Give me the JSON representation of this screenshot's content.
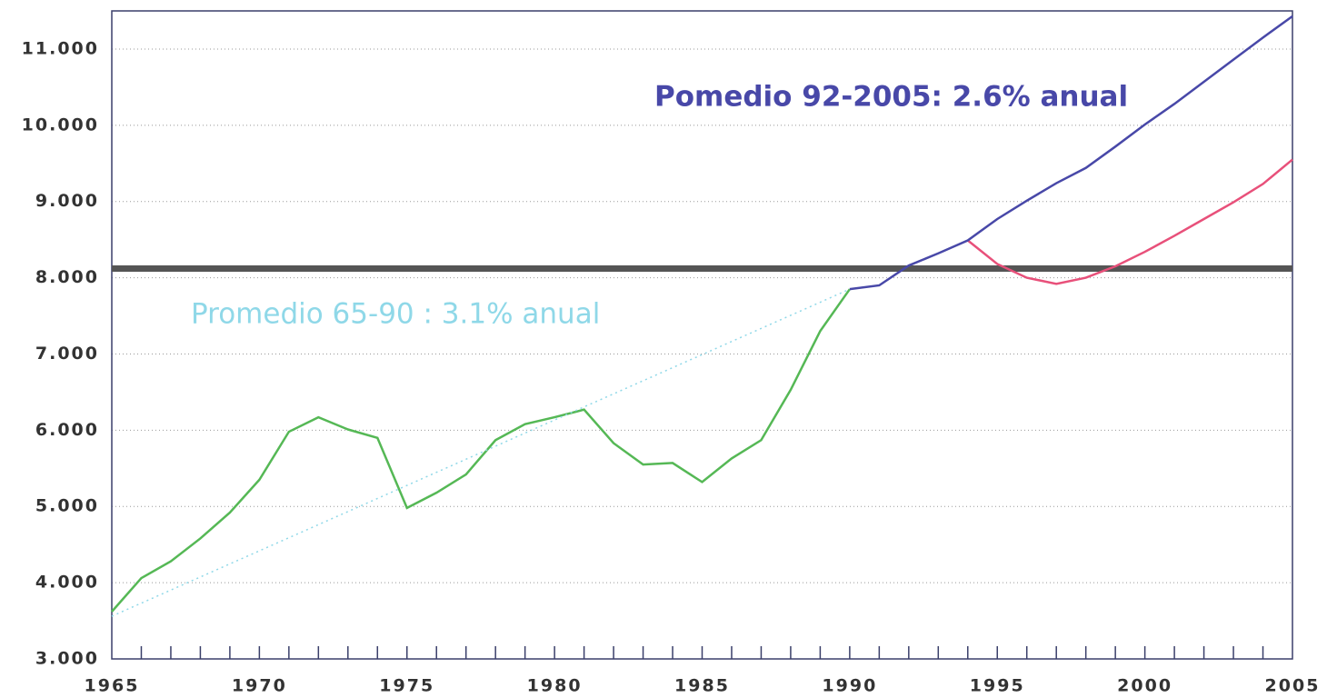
{
  "chart_data": {
    "type": "line",
    "xlim": [
      1965,
      2005
    ],
    "ylim": [
      3000,
      11500
    ],
    "xticks": [
      1965,
      1970,
      1975,
      1980,
      1985,
      1990,
      1995,
      2000,
      2005
    ],
    "xminor_ticks": [
      1966,
      1967,
      1968,
      1969,
      1970,
      1971,
      1972,
      1973,
      1974,
      1975,
      1976,
      1977,
      1978,
      1979,
      1980,
      1981,
      1982,
      1983,
      1984,
      1985,
      1986,
      1987,
      1988,
      1989,
      1990,
      1991,
      1992,
      1993,
      1994,
      1995,
      1996,
      1997,
      1998,
      1999,
      2000,
      2001,
      2002,
      2003,
      2004
    ],
    "yticks": [
      {
        "value": 3000,
        "label": "3.000"
      },
      {
        "value": 4000,
        "label": "4.000"
      },
      {
        "value": 5000,
        "label": "5.000"
      },
      {
        "value": 6000,
        "label": "6.000"
      },
      {
        "value": 7000,
        "label": "7.000"
      },
      {
        "value": 8000,
        "label": "8.000"
      },
      {
        "value": 9000,
        "label": "9.000"
      },
      {
        "value": 10000,
        "label": "10.000"
      },
      {
        "value": 11000,
        "label": "11.000"
      }
    ],
    "grid": true,
    "reference_line": {
      "value": 8120,
      "color": "#555555"
    },
    "series": [
      {
        "color": "#55b855",
        "style": "solid",
        "x": [
          1965,
          1966,
          1967,
          1968,
          1969,
          1970,
          1971,
          1972,
          1973,
          1974,
          1975,
          1976,
          1977,
          1978,
          1979,
          1980,
          1981,
          1982,
          1983,
          1984,
          1985,
          1986,
          1987,
          1988,
          1989,
          1990
        ],
        "values": [
          3620,
          4060,
          4280,
          4580,
          4920,
          5350,
          5980,
          6170,
          6010,
          5900,
          4980,
          5180,
          5420,
          5870,
          6080,
          6170,
          6270,
          5830,
          5550,
          5570,
          5320,
          5630,
          5870,
          6530,
          7300,
          7850
        ]
      },
      {
        "color": "#8fd8e8",
        "style": "dotted",
        "x": [
          1965,
          1990
        ],
        "values": [
          3560,
          7850
        ]
      },
      {
        "color": "#e8507a",
        "style": "solid",
        "x": [
          1994,
          1995,
          1996,
          1997,
          1998,
          1999,
          2000,
          2001,
          2002,
          2003,
          2004,
          2005
        ],
        "values": [
          8490,
          8180,
          8000,
          7920,
          8000,
          8150,
          8340,
          8550,
          8770,
          8990,
          9230,
          9550
        ]
      },
      {
        "color": "#4848a8",
        "style": "solid",
        "x": [
          1990,
          1991,
          1992,
          1993,
          1994,
          1995,
          1996,
          1997,
          1998,
          1999,
          2000,
          2001,
          2002,
          2003,
          2004,
          2005
        ],
        "values": [
          7850,
          7900,
          8160,
          8320,
          8490,
          8770,
          9010,
          9240,
          9440,
          9720,
          10010,
          10280,
          10570,
          10860,
          11150,
          11430
        ]
      }
    ],
    "annotations": [
      {
        "text": "Pomedio 92-2005: 2.6% anual",
        "color": "#4848a8"
      },
      {
        "text": "Promedio 65-90 : 3.1% anual",
        "color": "#8fd8e8"
      }
    ]
  }
}
